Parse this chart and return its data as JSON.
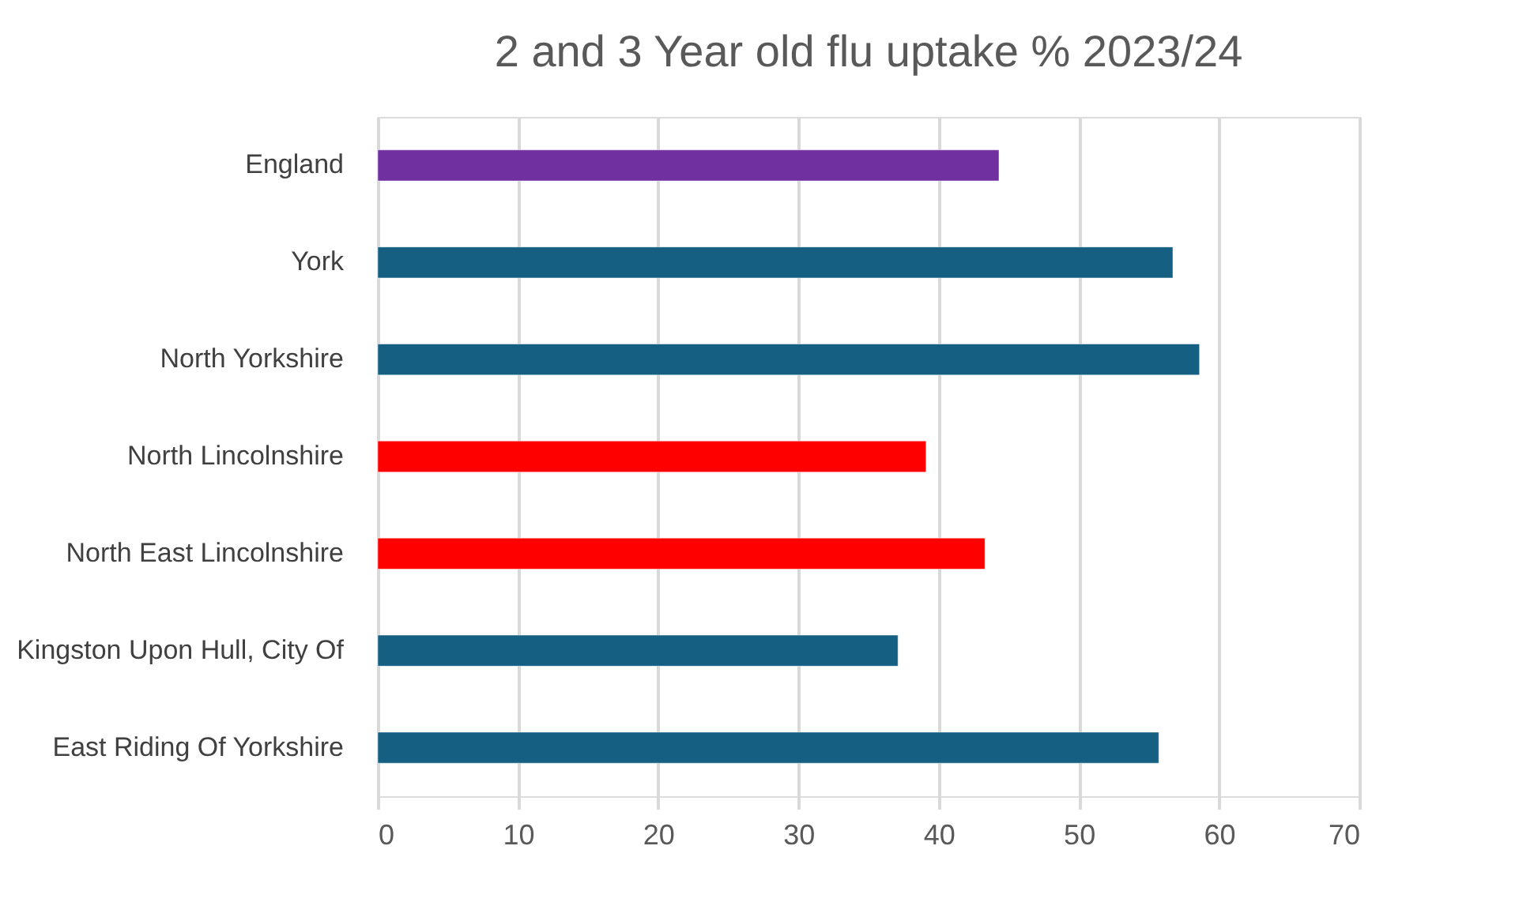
{
  "chart_data": {
    "type": "bar",
    "orientation": "horizontal",
    "title": "2 and 3 Year old flu uptake % 2023/24",
    "categories": [
      "England",
      "York",
      "North Yorkshire",
      "North Lincolnshire",
      "North East Lincolnshire",
      "Kingston Upon Hull, City Of",
      "East Riding Of Yorkshire"
    ],
    "values": [
      44.3,
      56.7,
      58.6,
      39.1,
      43.3,
      37.1,
      55.7
    ],
    "colors": [
      "#7030a0",
      "#156082",
      "#156082",
      "#ff0000",
      "#ff0000",
      "#156082",
      "#156082"
    ],
    "xlim": [
      0,
      70
    ],
    "xticks": [
      0,
      10,
      20,
      30,
      40,
      50,
      60,
      70
    ],
    "grid": "x"
  }
}
